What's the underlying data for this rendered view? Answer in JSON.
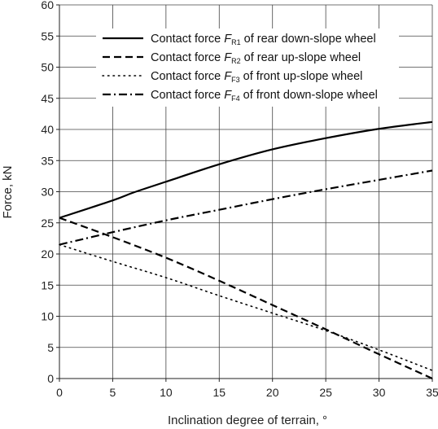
{
  "chart_data": {
    "type": "line",
    "title": "",
    "xlabel": "Inclination degree of terrain, °",
    "ylabel": "Force, kN",
    "xlim": [
      0,
      35
    ],
    "ylim": [
      0,
      60
    ],
    "x_ticks": [
      0,
      5,
      10,
      15,
      20,
      25,
      30,
      35
    ],
    "y_ticks": [
      0,
      5,
      10,
      15,
      20,
      25,
      30,
      35,
      40,
      45,
      50,
      55,
      60
    ],
    "grid": true,
    "legend_position": "top-right",
    "series": [
      {
        "name": "Contact force F_R1 of rear down-slope wheel",
        "legend_prefix": "Contact force ",
        "legend_symbol": "F",
        "legend_sub": "R1",
        "legend_suffix": " of rear down-slope wheel",
        "dash": "solid",
        "x": [
          0,
          5,
          7,
          10,
          15,
          20,
          25,
          30,
          35
        ],
        "y": [
          25.8,
          28.6,
          29.9,
          31.6,
          34.4,
          36.8,
          38.6,
          40.1,
          41.2
        ]
      },
      {
        "name": "Contact force F_R2 of rear up-slope wheel",
        "legend_prefix": "Contact force ",
        "legend_symbol": "F",
        "legend_sub": "R2",
        "legend_suffix": " of rear up-slope wheel",
        "dash": "dashed",
        "x": [
          0,
          5,
          10,
          15,
          20,
          25,
          30,
          35
        ],
        "y": [
          25.8,
          22.7,
          19.4,
          15.7,
          11.8,
          7.9,
          3.9,
          0
        ]
      },
      {
        "name": "Contact force F_F3 of front up-slope wheel",
        "legend_prefix": "Contact force ",
        "legend_symbol": "F",
        "legend_sub": "F3",
        "legend_suffix": " of front up-slope wheel",
        "dash": "dotted",
        "x": [
          0,
          5,
          10,
          15,
          20,
          25,
          30,
          35
        ],
        "y": [
          21.5,
          18.8,
          16.2,
          13.3,
          10.5,
          7.7,
          4.6,
          1.3
        ]
      },
      {
        "name": "Contact force F_F4 of front down-slope wheel",
        "legend_prefix": "Contact force ",
        "legend_symbol": "F",
        "legend_sub": "F4",
        "legend_suffix": " of front down-slope wheel",
        "dash": "dashdot",
        "x": [
          0,
          5,
          10,
          15,
          20,
          25,
          30,
          35
        ],
        "y": [
          21.5,
          23.5,
          25.4,
          27.1,
          28.8,
          30.4,
          31.9,
          33.4
        ]
      }
    ]
  }
}
